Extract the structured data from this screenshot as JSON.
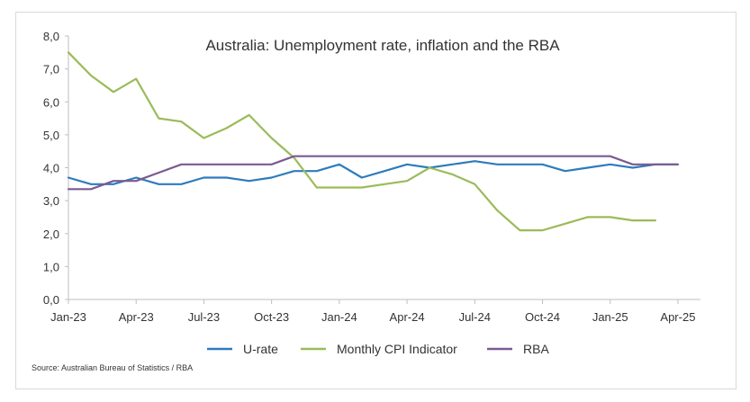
{
  "chart_data": {
    "type": "line",
    "title": "Australia: Unemployment rate, inflation and the RBA",
    "xlabel": "",
    "ylabel": "",
    "ylim": [
      0,
      8
    ],
    "yticks": [
      "0,0",
      "1,0",
      "2,0",
      "3,0",
      "4,0",
      "5,0",
      "6,0",
      "7,0",
      "8,0"
    ],
    "x_tick_labels": [
      "Jan-23",
      "Apr-23",
      "Jul-23",
      "Oct-23",
      "Jan-24",
      "Apr-24",
      "Jul-24",
      "Oct-24",
      "Jan-25",
      "Apr-25"
    ],
    "x_range_months": [
      0,
      28
    ],
    "series": [
      {
        "name": "U-rate",
        "color": "#2e7bbd",
        "points": [
          [
            0,
            3.7
          ],
          [
            1,
            3.5
          ],
          [
            2,
            3.5
          ],
          [
            3,
            3.7
          ],
          [
            4,
            3.5
          ],
          [
            5,
            3.5
          ],
          [
            6,
            3.7
          ],
          [
            7,
            3.7
          ],
          [
            8,
            3.6
          ],
          [
            9,
            3.7
          ],
          [
            10,
            3.9
          ],
          [
            11,
            3.9
          ],
          [
            12,
            4.1
          ],
          [
            13,
            3.7
          ],
          [
            14,
            3.9
          ],
          [
            15,
            4.1
          ],
          [
            16,
            4.0
          ],
          [
            17,
            4.1
          ],
          [
            18,
            4.2
          ],
          [
            19,
            4.1
          ],
          [
            20,
            4.1
          ],
          [
            21,
            4.1
          ],
          [
            22,
            3.9
          ],
          [
            23,
            4.0
          ],
          [
            24,
            4.1
          ],
          [
            25,
            4.0
          ],
          [
            26,
            4.1
          ],
          [
            27,
            4.1
          ]
        ]
      },
      {
        "name": "Monthly CPI Indicator",
        "color": "#9bbb59",
        "points": [
          [
            0,
            7.5
          ],
          [
            1,
            6.8
          ],
          [
            2,
            6.3
          ],
          [
            3,
            6.7
          ],
          [
            4,
            5.5
          ],
          [
            5,
            5.4
          ],
          [
            6,
            4.9
          ],
          [
            7,
            5.2
          ],
          [
            8,
            5.6
          ],
          [
            9,
            4.9
          ],
          [
            10,
            4.3
          ],
          [
            11,
            3.4
          ],
          [
            12,
            3.4
          ],
          [
            13,
            3.4
          ],
          [
            14,
            3.5
          ],
          [
            15,
            3.6
          ],
          [
            16,
            4.0
          ],
          [
            17,
            3.8
          ],
          [
            18,
            3.5
          ],
          [
            19,
            2.7
          ],
          [
            20,
            2.1
          ],
          [
            21,
            2.1
          ],
          [
            22,
            2.3
          ],
          [
            23,
            2.5
          ],
          [
            24,
            2.5
          ],
          [
            25,
            2.4
          ],
          [
            26,
            2.4
          ]
        ]
      },
      {
        "name": "RBA",
        "color": "#7b5a91",
        "points": [
          [
            0,
            3.35
          ],
          [
            1,
            3.35
          ],
          [
            2,
            3.6
          ],
          [
            3,
            3.6
          ],
          [
            4,
            3.85
          ],
          [
            5,
            4.1
          ],
          [
            6,
            4.1
          ],
          [
            7,
            4.1
          ],
          [
            8,
            4.1
          ],
          [
            9,
            4.1
          ],
          [
            10,
            4.35
          ],
          [
            11,
            4.35
          ],
          [
            12,
            4.35
          ],
          [
            13,
            4.35
          ],
          [
            14,
            4.35
          ],
          [
            15,
            4.35
          ],
          [
            16,
            4.35
          ],
          [
            17,
            4.35
          ],
          [
            18,
            4.35
          ],
          [
            19,
            4.35
          ],
          [
            20,
            4.35
          ],
          [
            21,
            4.35
          ],
          [
            22,
            4.35
          ],
          [
            23,
            4.35
          ],
          [
            24,
            4.35
          ],
          [
            25,
            4.1
          ],
          [
            26,
            4.1
          ],
          [
            27,
            4.1
          ]
        ]
      }
    ],
    "legend": [
      "U-rate",
      "Monthly CPI Indicator",
      "RBA"
    ],
    "legend_position": "bottom",
    "grid": false
  },
  "source": "Source: Australian Bureau of Statistics / RBA"
}
